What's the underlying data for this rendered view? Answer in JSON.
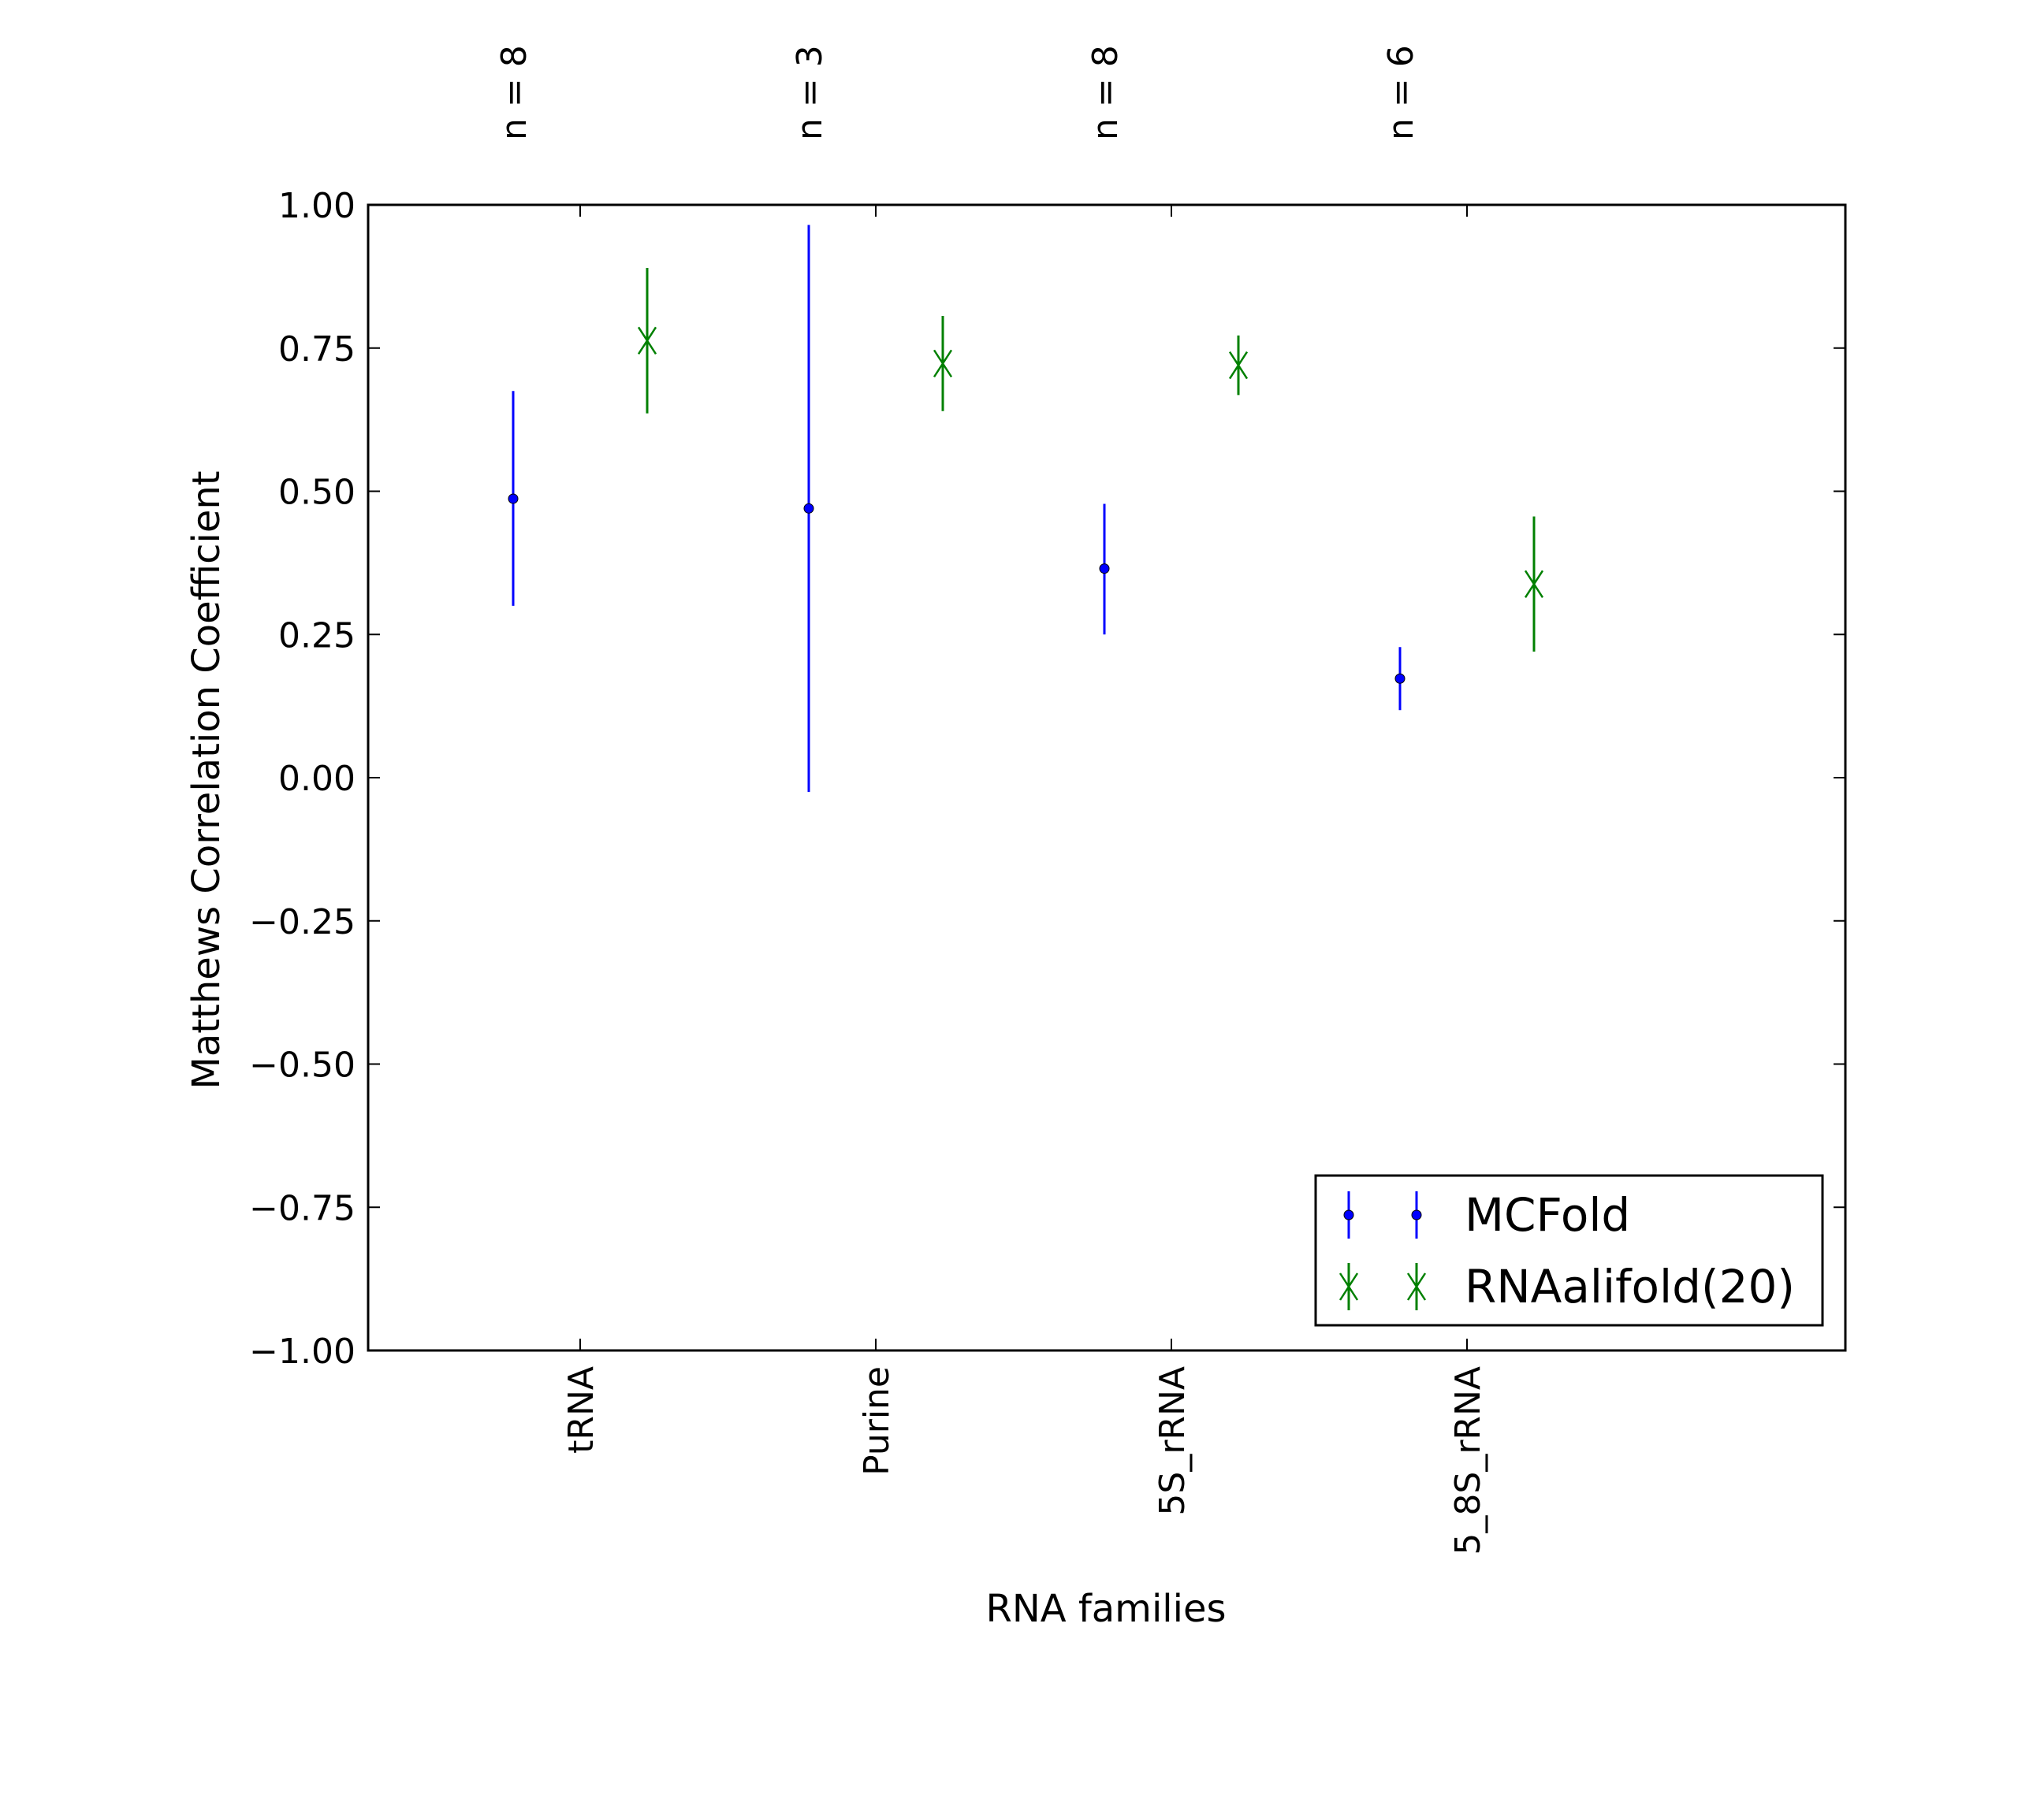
{
  "chart_data": {
    "type": "scatter",
    "error_bars": true,
    "xlabel": "RNA families",
    "ylabel": "Matthews Correlation Coefficient",
    "categories": [
      "tRNA",
      "Purine",
      "5S_rRNA",
      "5_8S_rRNA"
    ],
    "sample_sizes": [
      "n = 8",
      "n = 3",
      "n = 8",
      "n = 6"
    ],
    "ylim": [
      -1.0,
      1.0
    ],
    "yticks": [
      "1.00",
      "0.75",
      "0.50",
      "0.25",
      "0.00",
      "−0.25",
      "−0.50",
      "−0.75",
      "−1.00"
    ],
    "ytick_values": [
      1.0,
      0.75,
      0.5,
      0.25,
      0.0,
      -0.25,
      -0.5,
      -0.75,
      -1.0
    ],
    "legend_position": "lower-right",
    "series": [
      {
        "name": "MCFold",
        "color": "#0000ff",
        "marker": "dot",
        "values": [
          0.487,
          0.47,
          0.365,
          0.173
        ],
        "err_low": [
          0.3,
          -0.025,
          0.25,
          0.118
        ],
        "err_high": [
          0.675,
          0.965,
          0.478,
          0.228
        ]
      },
      {
        "name": "RNAalifold(20)",
        "color": "#008000",
        "marker": "x",
        "values": [
          0.763,
          0.723,
          0.72,
          0.338
        ],
        "err_low": [
          0.636,
          0.64,
          0.668,
          0.22
        ],
        "err_high": [
          0.89,
          0.806,
          0.772,
          0.456
        ]
      }
    ]
  }
}
